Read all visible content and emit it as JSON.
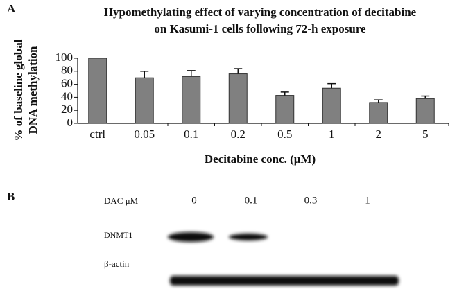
{
  "panel_a_label": "A",
  "panel_b_label": "B",
  "chart_data": {
    "type": "bar",
    "title": [
      "Hypomethylating effect of varying concentration of decitabine",
      "on Kasumi-1 cells  following 72-h exposure"
    ],
    "y_label": [
      "% of baseline global",
      "DNA methylation"
    ],
    "x_label": "Decitabine conc. (μM)",
    "categories": [
      "ctrl",
      "0.05",
      "0.1",
      "0.2",
      "0.5",
      "1",
      "2",
      "5"
    ],
    "values": [
      100,
      70,
      72,
      76,
      43,
      54,
      32,
      38
    ],
    "errors": [
      0,
      10,
      9,
      8,
      5,
      7,
      4,
      4
    ],
    "color": "#808080",
    "ylim": [
      0,
      100
    ],
    "yticks": [
      0,
      20,
      40,
      60,
      80,
      100
    ],
    "grid": false
  },
  "blot": {
    "header_label": "DAC μM",
    "lanes": [
      "0",
      "0.1",
      "0.3",
      "1"
    ],
    "rows": [
      "DNMT1",
      "β-actin"
    ]
  }
}
